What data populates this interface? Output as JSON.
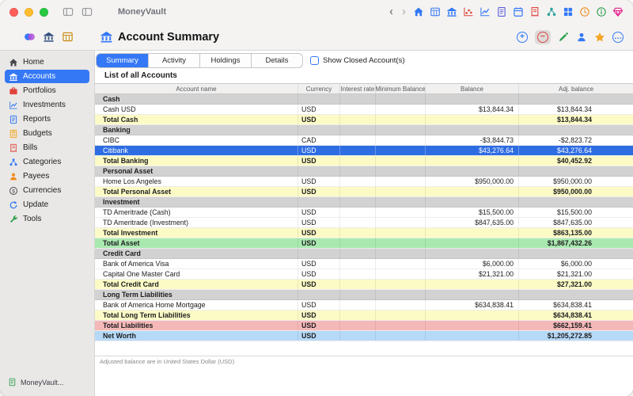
{
  "window": {
    "title": "MoneyVault",
    "page_title": "Account Summary",
    "bottom_left_label": "MoneyVault...",
    "footer_note": "Adjusted balance are in United States Dollar (USD)"
  },
  "colors": {
    "accent": "#3478f6",
    "row_selected": "#2e6ce2",
    "row_section": "#d2d2d2",
    "row_total": "#fcfbc6",
    "row_asset": "#a9e9b0",
    "row_liability": "#f5b8b8",
    "row_networth": "#b6d9f7"
  },
  "tabs": {
    "items": [
      {
        "label": "Summary",
        "active": true
      },
      {
        "label": "Activity",
        "active": false
      },
      {
        "label": "Holdings",
        "active": false
      },
      {
        "label": "Details",
        "active": false
      }
    ],
    "show_closed_label": "Show Closed Account(s)",
    "show_closed_checked": false
  },
  "list_title": "List of all Accounts",
  "sidebar": {
    "items": [
      {
        "label": "Home",
        "icon": "home-icon",
        "color": "#46464d",
        "active": false
      },
      {
        "label": "Accounts",
        "icon": "bank-icon",
        "color": "#ffffff",
        "active": true
      },
      {
        "label": "Portfolios",
        "icon": "briefcase-icon",
        "color": "#e0443c",
        "active": false
      },
      {
        "label": "Investments",
        "icon": "line-chart-icon",
        "color": "#3478f6",
        "active": false
      },
      {
        "label": "Reports",
        "icon": "report-icon",
        "color": "#3478f6",
        "active": false
      },
      {
        "label": "Budgets",
        "icon": "calculator-icon",
        "color": "#f5a623",
        "active": false
      },
      {
        "label": "Bills",
        "icon": "receipt-icon",
        "color": "#e0443c",
        "active": false
      },
      {
        "label": "Categories",
        "icon": "hierarchy-icon",
        "color": "#3478f6",
        "active": false
      },
      {
        "label": "Payees",
        "icon": "person-icon",
        "color": "#f08c1e",
        "active": false
      },
      {
        "label": "Currencies",
        "icon": "currency-icon",
        "color": "#46464d",
        "active": false
      },
      {
        "label": "Update",
        "icon": "refresh-icon",
        "color": "#3478f6",
        "active": false
      },
      {
        "label": "Tools",
        "icon": "wrench-icon",
        "color": "#2fa04e",
        "active": false
      }
    ]
  },
  "nav_icons": [
    {
      "name": "nav-back-icon",
      "icon": "chevron-left",
      "glyph": "‹",
      "color": "#86868b"
    },
    {
      "name": "nav-forward-icon",
      "icon": "chevron-right",
      "glyph": "›",
      "color": "#bcbcc1"
    },
    {
      "name": "nav-home-icon",
      "icon": "home",
      "color": "#3478f6"
    },
    {
      "name": "nav-table-icon",
      "icon": "table",
      "color": "#3478f6"
    },
    {
      "name": "nav-bank-icon",
      "icon": "bank",
      "color": "#3478f6"
    },
    {
      "name": "nav-scatter-icon",
      "icon": "scatter",
      "color": "#e0443c"
    },
    {
      "name": "nav-line-chart-icon",
      "icon": "chart",
      "color": "#3478f6"
    },
    {
      "name": "nav-document-icon",
      "icon": "doc",
      "color": "#5a5fd8"
    },
    {
      "name": "nav-calendar-icon",
      "icon": "calendar",
      "color": "#3478f6"
    },
    {
      "name": "nav-bills-icon",
      "icon": "receipt",
      "color": "#e0443c"
    },
    {
      "name": "nav-hierarchy-icon",
      "icon": "hierarchy",
      "color": "#2aa198"
    },
    {
      "name": "nav-grid-icon",
      "icon": "grid",
      "color": "#3478f6"
    },
    {
      "name": "nav-clock-icon",
      "icon": "clock",
      "color": "#f08c1e"
    },
    {
      "name": "nav-info-icon",
      "icon": "info",
      "color": "#2fa04e"
    },
    {
      "name": "nav-gem-icon",
      "icon": "diamond",
      "color": "#e91e8c"
    }
  ],
  "toolbar": {
    "left_icons": [
      {
        "name": "toolbar-app-icon",
        "icon": "blob",
        "color": ""
      },
      {
        "name": "toolbar-bank-icon",
        "icon": "bank",
        "color": "#33517e"
      },
      {
        "name": "toolbar-columns-icon",
        "icon": "table",
        "color": "#c8860a"
      }
    ],
    "actions": [
      {
        "name": "add-account-button",
        "style": "circle",
        "glyph": "+",
        "color": "#3478f6"
      },
      {
        "name": "remove-account-button",
        "style": "circle-highlighted",
        "glyph": "−",
        "color": "#e0443c"
      },
      {
        "name": "edit-button",
        "icon": "pencil",
        "color": "#2fa04e"
      },
      {
        "name": "payee-button",
        "icon": "person",
        "color": "#3478f6"
      },
      {
        "name": "favorite-button",
        "icon": "star",
        "color": "#f5a623"
      },
      {
        "name": "more-button",
        "style": "circle",
        "glyph": "…",
        "color": "#3478f6"
      }
    ]
  },
  "table": {
    "columns": [
      "Account name",
      "Currency",
      "Interest rate",
      "Minimum Balance",
      "Balance",
      "Adj. balance"
    ],
    "rows": [
      {
        "type": "section",
        "name": "Cash"
      },
      {
        "type": "account",
        "name": "Cash USD",
        "currency": "USD",
        "interest": "",
        "min": "",
        "balance": "$13,844.34",
        "adj": "$13,844.34"
      },
      {
        "type": "total",
        "name": "Total Cash",
        "currency": "USD",
        "adj": "$13,844.34"
      },
      {
        "type": "section",
        "name": "Banking"
      },
      {
        "type": "account",
        "name": "CIBC",
        "currency": "CAD",
        "balance": "-$3,844.73",
        "adj": "-$2,823.72"
      },
      {
        "type": "account",
        "name": "Citibank",
        "currency": "USD",
        "balance": "$43,276.64",
        "adj": "$43,276.64",
        "selected": true
      },
      {
        "type": "total",
        "name": "Total Banking",
        "currency": "USD",
        "adj": "$40,452.92"
      },
      {
        "type": "section",
        "name": "Personal Asset"
      },
      {
        "type": "account",
        "name": "Home Los Angeles",
        "currency": "USD",
        "balance": "$950,000.00",
        "adj": "$950,000.00"
      },
      {
        "type": "total",
        "name": "Total Personal Asset",
        "currency": "USD",
        "adj": "$950,000.00"
      },
      {
        "type": "section",
        "name": "Investment"
      },
      {
        "type": "account",
        "name": "TD Ameritrade (Cash)",
        "currency": "USD",
        "balance": "$15,500.00",
        "adj": "$15,500.00"
      },
      {
        "type": "account",
        "name": "TD Ameritrade (Investment)",
        "currency": "USD",
        "balance": "$847,635.00",
        "adj": "$847,635.00"
      },
      {
        "type": "total",
        "name": "Total Investment",
        "currency": "USD",
        "adj": "$863,135.00"
      },
      {
        "type": "grand-asset",
        "name": "Total Asset",
        "currency": "USD",
        "adj": "$1,867,432.26"
      },
      {
        "type": "section",
        "name": "Credit Card"
      },
      {
        "type": "account",
        "name": "Bank of America Visa",
        "currency": "USD",
        "balance": "$6,000.00",
        "adj": "$6,000.00"
      },
      {
        "type": "account",
        "name": "Capital One Master Card",
        "currency": "USD",
        "balance": "$21,321.00",
        "adj": "$21,321.00"
      },
      {
        "type": "total",
        "name": "Total Credit Card",
        "currency": "USD",
        "adj": "$27,321.00"
      },
      {
        "type": "section",
        "name": "Long Term Liabilities"
      },
      {
        "type": "account",
        "name": "Bank of America Home Mortgage",
        "currency": "USD",
        "balance": "$634,838.41",
        "adj": "$634,838.41"
      },
      {
        "type": "total",
        "name": "Total Long Term Liabilities",
        "currency": "USD",
        "adj": "$634,838.41"
      },
      {
        "type": "grand-liability",
        "name": "Total Liabilities",
        "currency": "USD",
        "adj": "$662,159.41"
      },
      {
        "type": "networth",
        "name": "Net Worth",
        "currency": "USD",
        "adj": "$1,205,272.85"
      }
    ]
  }
}
